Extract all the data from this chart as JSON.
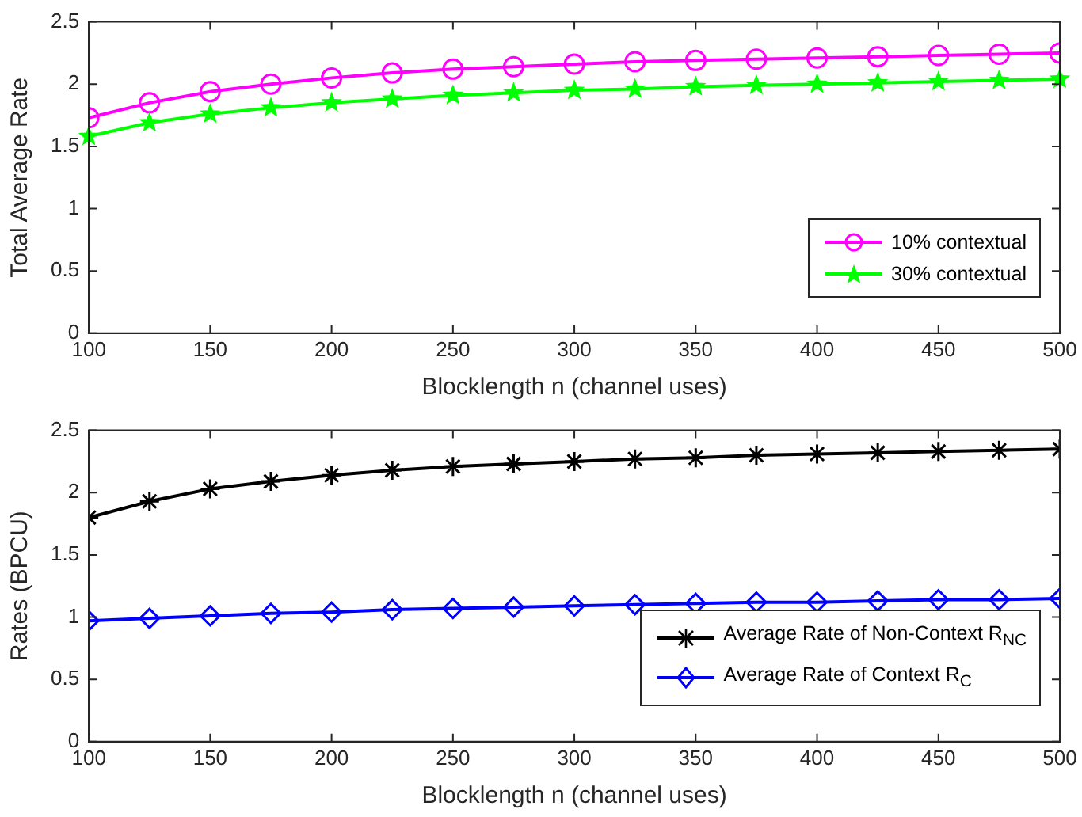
{
  "chart_data": [
    {
      "type": "line",
      "xlabel": "Blocklength n (channel uses)",
      "ylabel": "Total Average Rate",
      "x": [
        100,
        125,
        150,
        175,
        200,
        225,
        250,
        275,
        300,
        325,
        350,
        375,
        400,
        425,
        450,
        475,
        500
      ],
      "xlim": [
        100,
        500
      ],
      "xticks": [
        100,
        150,
        200,
        250,
        300,
        350,
        400,
        450,
        500
      ],
      "ylim": [
        0,
        2.5
      ],
      "yticks": [
        0,
        0.5,
        1,
        1.5,
        2,
        2.5
      ],
      "legend": "bottom right",
      "grid": false,
      "series": [
        {
          "name": "10% contextual",
          "color": "#ff00ff",
          "marker": "circle",
          "values": [
            1.73,
            1.85,
            1.94,
            2.0,
            2.05,
            2.09,
            2.12,
            2.14,
            2.16,
            2.18,
            2.19,
            2.2,
            2.21,
            2.22,
            2.23,
            2.24,
            2.25
          ]
        },
        {
          "name": "30% contextual",
          "color": "#00ff00",
          "marker": "star",
          "values": [
            1.58,
            1.69,
            1.76,
            1.81,
            1.85,
            1.88,
            1.91,
            1.93,
            1.95,
            1.96,
            1.98,
            1.99,
            2.0,
            2.01,
            2.02,
            2.03,
            2.04
          ]
        }
      ]
    },
    {
      "type": "line",
      "xlabel": "Blocklength n (channel uses)",
      "ylabel": "Rates (BPCU)",
      "x": [
        100,
        125,
        150,
        175,
        200,
        225,
        250,
        275,
        300,
        325,
        350,
        375,
        400,
        425,
        450,
        475,
        500
      ],
      "xlim": [
        100,
        500
      ],
      "xticks": [
        100,
        150,
        200,
        250,
        300,
        350,
        400,
        450,
        500
      ],
      "ylim": [
        0,
        2.5
      ],
      "yticks": [
        0,
        0.5,
        1,
        1.5,
        2,
        2.5
      ],
      "legend": "bottom right",
      "grid": false,
      "series": [
        {
          "name": "Average Rate of Non-Context  R$_{NC}$",
          "color": "#000000",
          "marker": "cross",
          "values": [
            1.8,
            1.93,
            2.03,
            2.09,
            2.14,
            2.18,
            2.21,
            2.23,
            2.25,
            2.27,
            2.28,
            2.3,
            2.31,
            2.32,
            2.33,
            2.34,
            2.35
          ]
        },
        {
          "name": "Average Rate of Context R$_{C}$",
          "color": "#0000ff",
          "marker": "diamond",
          "values": [
            0.97,
            0.99,
            1.01,
            1.03,
            1.04,
            1.06,
            1.07,
            1.08,
            1.09,
            1.1,
            1.11,
            1.12,
            1.12,
            1.13,
            1.14,
            1.14,
            1.15
          ]
        }
      ]
    }
  ]
}
